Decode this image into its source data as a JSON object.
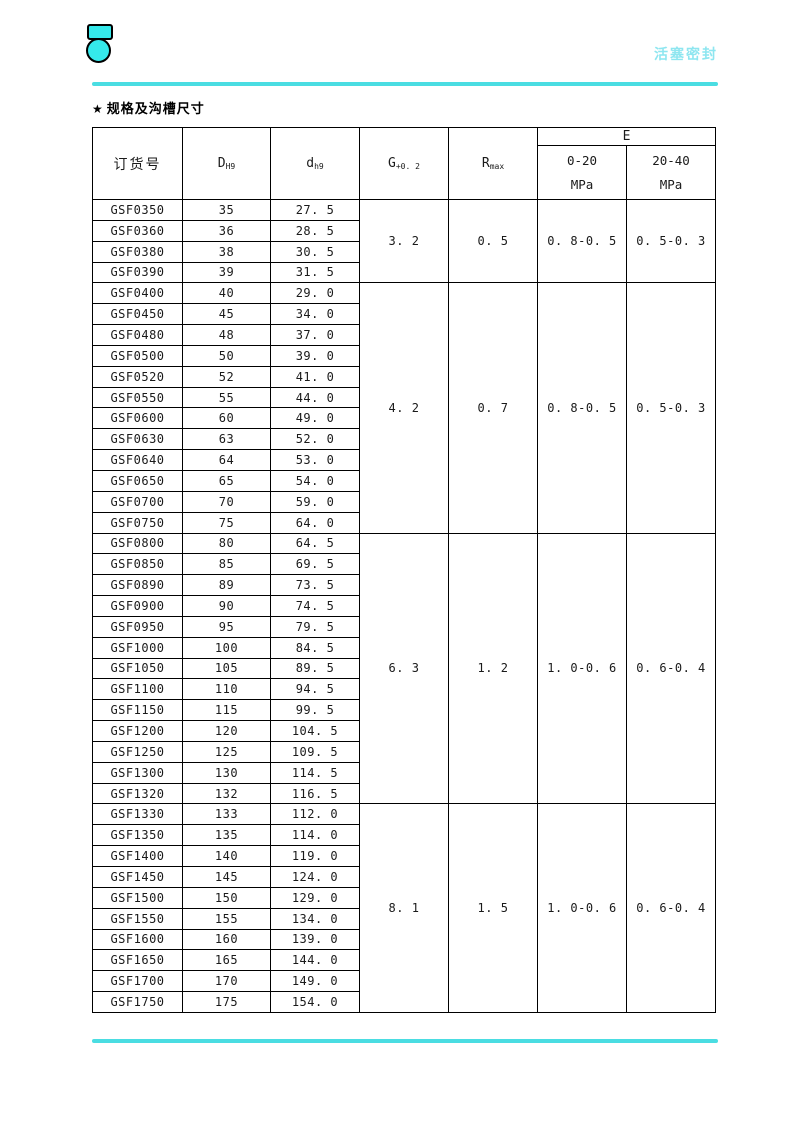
{
  "header": {
    "brand": "活塞密封"
  },
  "section": {
    "star": "★",
    "title": "规格及沟槽尺寸"
  },
  "table": {
    "headers": {
      "order_no": "订货号",
      "d_outer": {
        "base": "D",
        "sub": "H9"
      },
      "d_inner": {
        "base": "d",
        "sub": "h9"
      },
      "groove": {
        "base": "G",
        "sub": "+0. 2"
      },
      "radius": {
        "base": "R",
        "sub": "max"
      },
      "e": "E",
      "e_low": {
        "range": "0-20",
        "unit": "MPa"
      },
      "e_high": {
        "range": "20-40",
        "unit": "MPa"
      }
    },
    "groups": [
      {
        "g": "3. 2",
        "r": "0. 5",
        "e_low": "0. 8-0. 5",
        "e_high": "0. 5-0. 3",
        "rows": [
          [
            "GSF0350",
            "35",
            "27. 5"
          ],
          [
            "GSF0360",
            "36",
            "28. 5"
          ],
          [
            "GSF0380",
            "38",
            "30. 5"
          ],
          [
            "GSF0390",
            "39",
            "31. 5"
          ]
        ]
      },
      {
        "g": "4. 2",
        "r": "0. 7",
        "e_low": "0. 8-0. 5",
        "e_high": "0. 5-0. 3",
        "rows": [
          [
            "GSF0400",
            "40",
            "29. 0"
          ],
          [
            "GSF0450",
            "45",
            "34. 0"
          ],
          [
            "GSF0480",
            "48",
            "37. 0"
          ],
          [
            "GSF0500",
            "50",
            "39. 0"
          ],
          [
            "GSF0520",
            "52",
            "41. 0"
          ],
          [
            "GSF0550",
            "55",
            "44. 0"
          ],
          [
            "GSF0600",
            "60",
            "49. 0"
          ],
          [
            "GSF0630",
            "63",
            "52. 0"
          ],
          [
            "GSF0640",
            "64",
            "53. 0"
          ],
          [
            "GSF0650",
            "65",
            "54. 0"
          ],
          [
            "GSF0700",
            "70",
            "59. 0"
          ],
          [
            "GSF0750",
            "75",
            "64. 0"
          ]
        ]
      },
      {
        "g": "6. 3",
        "r": "1. 2",
        "e_low": "1. 0-0. 6",
        "e_high": "0. 6-0. 4",
        "rows": [
          [
            "GSF0800",
            "80",
            "64. 5"
          ],
          [
            "GSF0850",
            "85",
            "69. 5"
          ],
          [
            "GSF0890",
            "89",
            "73. 5"
          ],
          [
            "GSF0900",
            "90",
            "74. 5"
          ],
          [
            "GSF0950",
            "95",
            "79. 5"
          ],
          [
            "GSF1000",
            "100",
            "84. 5"
          ],
          [
            "GSF1050",
            "105",
            "89. 5"
          ],
          [
            "GSF1100",
            "110",
            "94. 5"
          ],
          [
            "GSF1150",
            "115",
            "99. 5"
          ],
          [
            "GSF1200",
            "120",
            "104. 5"
          ],
          [
            "GSF1250",
            "125",
            "109. 5"
          ],
          [
            "GSF1300",
            "130",
            "114. 5"
          ],
          [
            "GSF1320",
            "132",
            "116. 5"
          ]
        ]
      },
      {
        "g": "8. 1",
        "r": "1. 5",
        "e_low": "1. 0-0. 6",
        "e_high": "0. 6-0. 4",
        "rows": [
          [
            "GSF1330",
            "133",
            "112. 0"
          ],
          [
            "GSF1350",
            "135",
            "114. 0"
          ],
          [
            "GSF1400",
            "140",
            "119. 0"
          ],
          [
            "GSF1450",
            "145",
            "124. 0"
          ],
          [
            "GSF1500",
            "150",
            "129. 0"
          ],
          [
            "GSF1550",
            "155",
            "134. 0"
          ],
          [
            "GSF1600",
            "160",
            "139. 0"
          ],
          [
            "GSF1650",
            "165",
            "144. 0"
          ],
          [
            "GSF1700",
            "170",
            "149. 0"
          ],
          [
            "GSF1750",
            "175",
            "154. 0"
          ]
        ]
      }
    ]
  },
  "colors": {
    "accent_line": "#4ADDE2",
    "logo_fill": "#35E9EB",
    "brand_text": "#8EE6F0"
  }
}
